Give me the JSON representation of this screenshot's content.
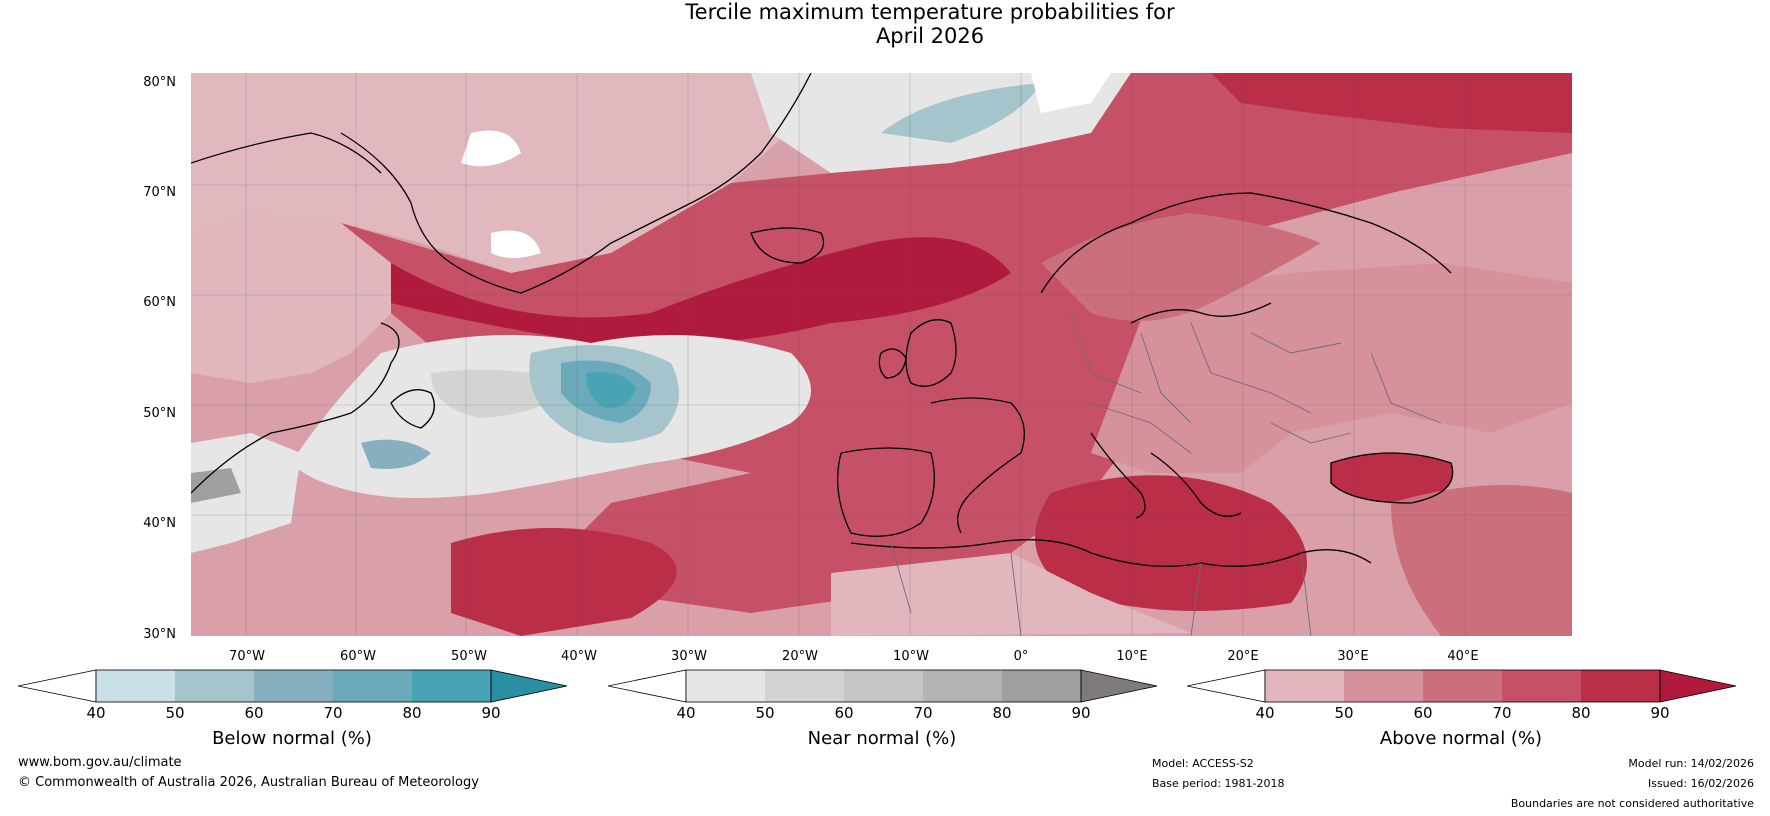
{
  "title": {
    "line1": "Tercile maximum temperature probabilities for",
    "line2": "April 2026"
  },
  "map": {
    "lat_labels": [
      "80°N",
      "70°N",
      "60°N",
      "50°N",
      "40°N",
      "30°N"
    ],
    "lon_labels": [
      "70°W",
      "60°W",
      "50°W",
      "40°W",
      "30°W",
      "20°W",
      "10°W",
      "0°",
      "10°E",
      "20°E",
      "30°E",
      "40°E"
    ],
    "region": "North Atlantic and Europe"
  },
  "colorbars": [
    {
      "title": "Below normal (%)",
      "ticks": [
        "40",
        "50",
        "60",
        "70",
        "80",
        "90"
      ],
      "colors": [
        "#ffffff",
        "#c9e0e6",
        "#a5c4cc",
        "#86b0bf",
        "#6aaabb",
        "#48a3b4",
        "#2b8fa3"
      ]
    },
    {
      "title": "Near normal (%)",
      "ticks": [
        "40",
        "50",
        "60",
        "70",
        "80",
        "90"
      ],
      "colors": [
        "#ffffff",
        "#e6e6e6",
        "#d3d3d3",
        "#c5c5c5",
        "#b3b3b3",
        "#a0a0a0",
        "#7f7b7b"
      ]
    },
    {
      "title": "Above normal (%)",
      "ticks": [
        "40",
        "50",
        "60",
        "70",
        "80",
        "90"
      ],
      "colors": [
        "#ffffff",
        "#e1b7bd",
        "#d7919d",
        "#cc6f7d",
        "#c65065",
        "#bb2e48",
        "#b01a3d"
      ]
    }
  ],
  "footer": {
    "website": "www.bom.gov.au/climate",
    "copyright": "© Commonwealth of Australia 2026, Australian Bureau of Meteorology",
    "model": "Model: ACCESS-S2",
    "base_period": "Base period: 1981-2018",
    "model_run": "Model run: 14/02/2026",
    "issued": "Issued: 16/02/2026",
    "disclaimer": "Boundaries are not considered authoritative"
  }
}
